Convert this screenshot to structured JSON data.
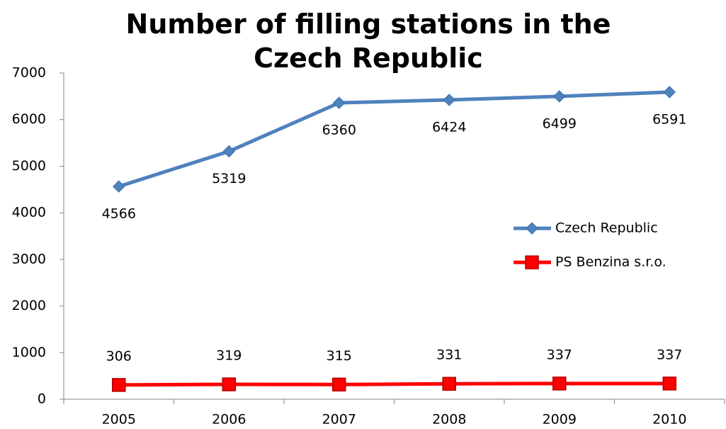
{
  "chart_data": {
    "type": "line",
    "title": "Number of filling stations in the Czech Republic",
    "categories": [
      "2005",
      "2006",
      "2007",
      "2008",
      "2009",
      "2010"
    ],
    "series": [
      {
        "name": "Czech Republic",
        "color": "#4f81bd",
        "marker": "diamond",
        "values": [
          4566,
          5319,
          6360,
          6424,
          6499,
          6591
        ]
      },
      {
        "name": "PS Benzina s.r.o.",
        "color": "#ff0000",
        "marker": "square",
        "values": [
          306,
          319,
          315,
          331,
          337,
          337
        ]
      }
    ],
    "ylim": [
      0,
      7000
    ],
    "yticks": [
      0,
      1000,
      2000,
      3000,
      4000,
      5000,
      6000,
      7000
    ],
    "grid": false,
    "legend": "right"
  }
}
